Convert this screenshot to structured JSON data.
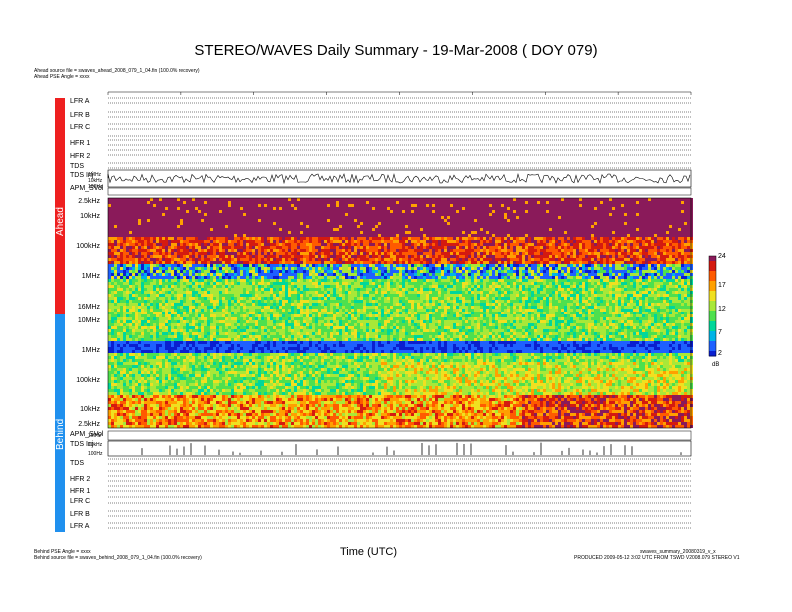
{
  "chart_data": {
    "type": "heatmap",
    "title": "STEREO/WAVES Daily Summary - 19-Mar-2008 ( DOY 079)",
    "xlabel": "Time (UTC)",
    "colorbar": {
      "ticks": [
        "24",
        "17",
        "12",
        "7",
        "2"
      ],
      "unit": "dB",
      "colors": [
        "#6a1a6a",
        "#b0182b",
        "#ff6a00",
        "#ffd000",
        "#7cfc00",
        "#00d0c0",
        "#0044ff"
      ]
    },
    "ahead_freq_ticks": [
      "2.5kHz",
      "10kHz",
      "100kHz",
      "1MHz",
      "16MHz"
    ],
    "behind_freq_ticks": [
      "10MHz",
      "1MHz",
      "100kHz",
      "10kHz",
      "2.5kHz"
    ],
    "tds_ticks": [
      "1MHz",
      "10kHz",
      "100Hz"
    ]
  },
  "header": {
    "ahead_source": "Ahead source file = swaves_ahead_2008_079_1_04.fin (100.0% recovery)",
    "ahead_pse": "Ahead PSE Angle = xxxx"
  },
  "footer": {
    "behind_pse": "Behind PSE Angle = xxxx",
    "behind_source": "Behind source file = swaves_behind_2008_079_1_04.fin (100.0% recovery)",
    "summary_file": "swaves_summary_20080319_v_x",
    "produced": "PRODUCED 2009-05-12 3:02 UTC FROM TSWD V2008.079 STEREO V1"
  },
  "sidebar": {
    "ahead_label": "Ahead",
    "behind_label": "Behind",
    "ahead_color": "#ee2020",
    "behind_color": "#2090ee"
  },
  "ahead_instruments": [
    "LFR A",
    "LFR B",
    "LFR C",
    "HFR 1",
    "HFR 2",
    "TDS",
    "TDS Inj",
    "APM_SVol"
  ],
  "behind_instruments": [
    "APM_SVol",
    "TDS Inj",
    "TDS",
    "HFR 2",
    "HFR 1",
    "LFR C",
    "LFR B",
    "LFR A"
  ]
}
